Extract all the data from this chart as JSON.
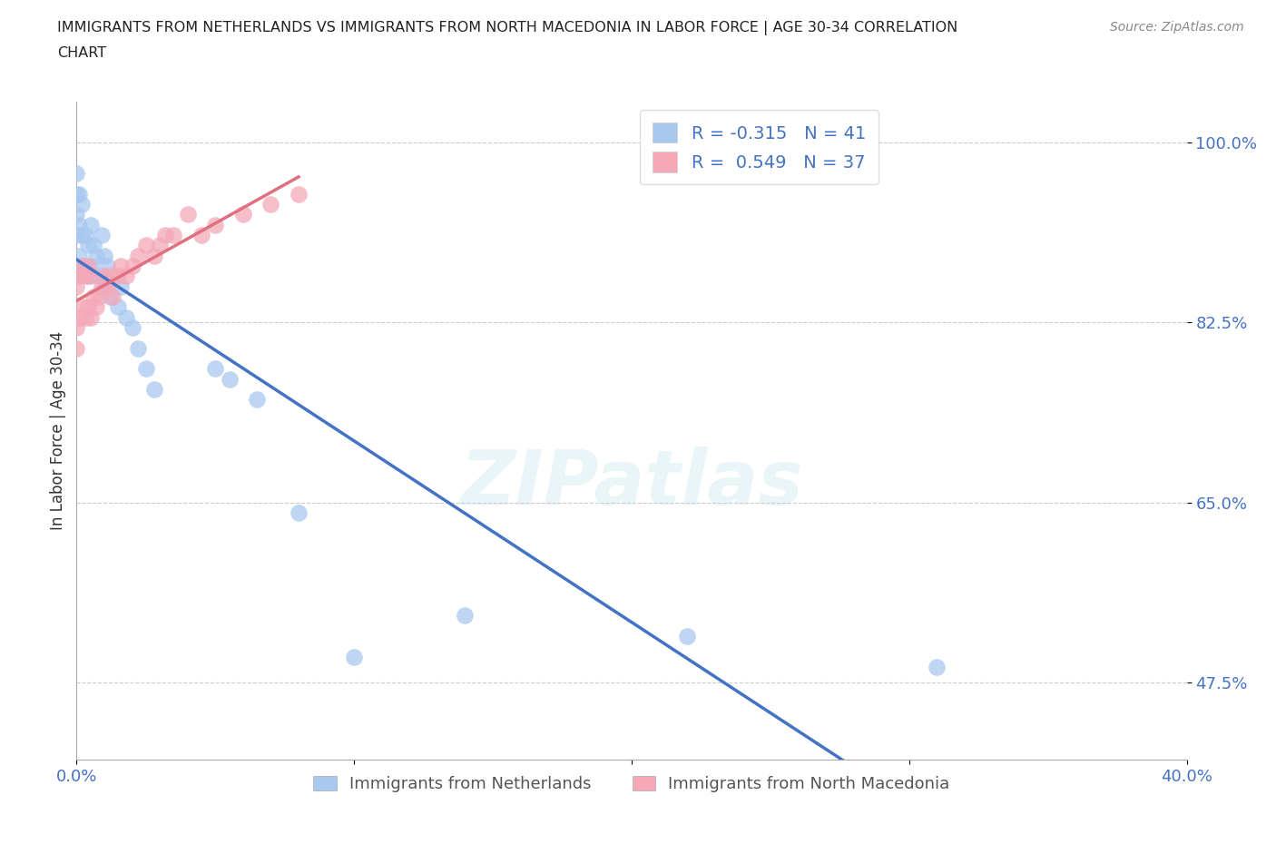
{
  "title_line1": "IMMIGRANTS FROM NETHERLANDS VS IMMIGRANTS FROM NORTH MACEDONIA IN LABOR FORCE | AGE 30-34 CORRELATION",
  "title_line2": "CHART",
  "source_text": "Source: ZipAtlas.com",
  "ylabel": "In Labor Force | Age 30-34",
  "xlabel_netherlands": "Immigrants from Netherlands",
  "xlabel_north_macedonia": "Immigrants from North Macedonia",
  "xlim": [
    0.0,
    0.4
  ],
  "ylim": [
    0.4,
    1.04
  ],
  "yticks": [
    0.475,
    0.65,
    0.825,
    1.0
  ],
  "ytick_labels": [
    "47.5%",
    "65.0%",
    "82.5%",
    "100.0%"
  ],
  "xticks": [
    0.0,
    0.1,
    0.2,
    0.3,
    0.4
  ],
  "xtick_labels": [
    "0.0%",
    "",
    "",
    "",
    "40.0%"
  ],
  "R_netherlands": -0.315,
  "N_netherlands": 41,
  "R_north_macedonia": 0.549,
  "N_north_macedonia": 37,
  "color_netherlands": "#a8c8f0",
  "color_north_macedonia": "#f4a8b8",
  "trendline_netherlands_color": "#4472c4",
  "trendline_north_macedonia_color": "#e07080",
  "legend_text_color": "#4472c4",
  "watermark": "ZIPatlas",
  "netherlands_x": [
    0.0,
    0.0,
    0.0,
    0.0,
    0.0,
    0.001,
    0.001,
    0.001,
    0.001,
    0.002,
    0.002,
    0.002,
    0.003,
    0.003,
    0.004,
    0.004,
    0.005,
    0.005,
    0.006,
    0.007,
    0.008,
    0.009,
    0.01,
    0.01,
    0.011,
    0.012,
    0.015,
    0.016,
    0.018,
    0.02,
    0.022,
    0.025,
    0.028,
    0.05,
    0.055,
    0.065,
    0.08,
    0.1,
    0.14,
    0.22,
    0.31
  ],
  "netherlands_y": [
    0.88,
    0.91,
    0.93,
    0.95,
    0.97,
    0.87,
    0.89,
    0.92,
    0.95,
    0.88,
    0.91,
    0.94,
    0.88,
    0.91,
    0.87,
    0.9,
    0.88,
    0.92,
    0.9,
    0.89,
    0.87,
    0.91,
    0.89,
    0.86,
    0.88,
    0.85,
    0.84,
    0.86,
    0.83,
    0.82,
    0.8,
    0.78,
    0.76,
    0.78,
    0.77,
    0.75,
    0.64,
    0.5,
    0.54,
    0.52,
    0.49
  ],
  "north_macedonia_x": [
    0.0,
    0.0,
    0.0,
    0.001,
    0.001,
    0.002,
    0.002,
    0.003,
    0.003,
    0.004,
    0.004,
    0.005,
    0.005,
    0.006,
    0.007,
    0.008,
    0.009,
    0.01,
    0.011,
    0.012,
    0.013,
    0.015,
    0.016,
    0.018,
    0.02,
    0.022,
    0.025,
    0.028,
    0.03,
    0.032,
    0.035,
    0.04,
    0.045,
    0.05,
    0.06,
    0.07,
    0.08
  ],
  "north_macedonia_y": [
    0.82,
    0.86,
    0.8,
    0.83,
    0.87,
    0.84,
    0.88,
    0.83,
    0.87,
    0.84,
    0.88,
    0.83,
    0.87,
    0.85,
    0.84,
    0.85,
    0.86,
    0.87,
    0.86,
    0.87,
    0.85,
    0.87,
    0.88,
    0.87,
    0.88,
    0.89,
    0.9,
    0.89,
    0.9,
    0.91,
    0.91,
    0.93,
    0.91,
    0.92,
    0.93,
    0.94,
    0.95
  ]
}
